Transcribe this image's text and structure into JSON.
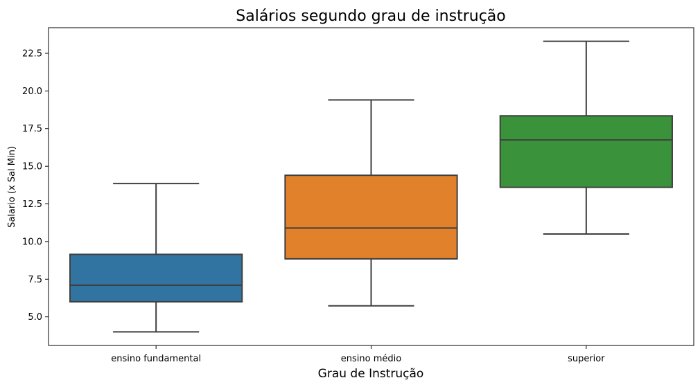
{
  "chart_data": {
    "type": "box",
    "title": "Salários segundo grau de instrução",
    "xlabel": "Grau de Instrução",
    "ylabel": "Salario (x Sal Min)",
    "ylim": [
      3.1,
      24.2
    ],
    "yticks": [
      5.0,
      7.5,
      10.0,
      12.5,
      15.0,
      17.5,
      20.0,
      22.5
    ],
    "ytick_labels": [
      "5.0",
      "7.5",
      "10.0",
      "12.5",
      "15.0",
      "17.5",
      "20.0",
      "22.5"
    ],
    "grid": false,
    "categories": [
      "ensino fundamental",
      "ensino médio",
      "superior"
    ],
    "boxes": [
      {
        "category": "ensino fundamental",
        "whisker_low": 4.0,
        "q1": 6.0,
        "median": 7.1,
        "q3": 9.15,
        "whisker_high": 13.85,
        "color": "#3274a1"
      },
      {
        "category": "ensino médio",
        "whisker_low": 5.73,
        "q1": 8.85,
        "median": 10.9,
        "q3": 14.4,
        "whisker_high": 19.4,
        "color": "#e1812c"
      },
      {
        "category": "superior",
        "whisker_low": 10.5,
        "q1": 13.6,
        "median": 16.75,
        "q3": 18.35,
        "whisker_high": 23.3,
        "color": "#3a923a"
      }
    ],
    "line_color": "#3f3f3f"
  }
}
